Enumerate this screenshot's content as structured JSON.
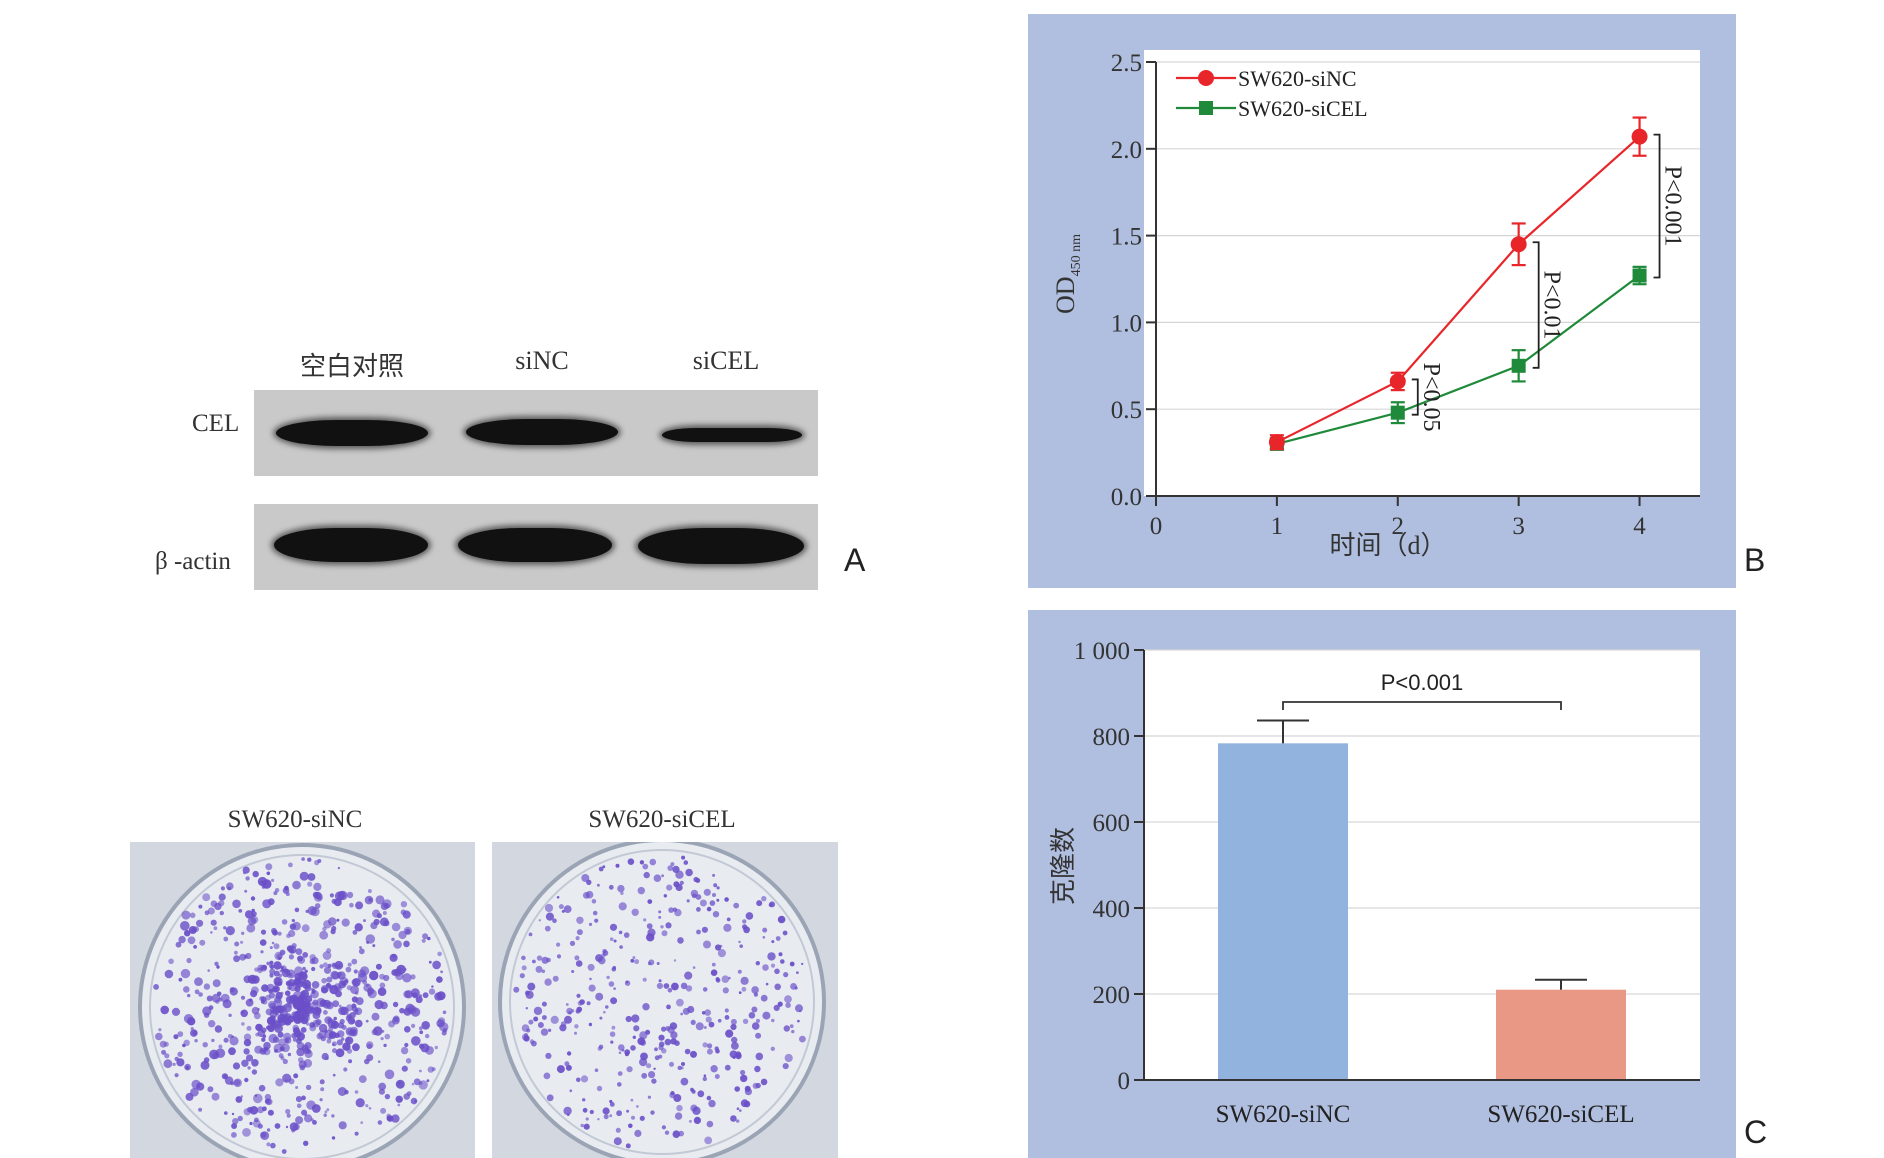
{
  "panel_a": {
    "lanes": [
      "空白对照",
      "siNC",
      "siCEL"
    ],
    "rows": [
      "CEL",
      "β -actin"
    ],
    "letter": "A"
  },
  "plates": {
    "left_title": "SW620-siNC",
    "right_title": "SW620-siCEL"
  },
  "chart_data": [
    {
      "type": "line",
      "letter": "B",
      "xlabel": "时间（d）",
      "ylabel_main": "OD",
      "ylabel_sub": "450 nm",
      "x": [
        1,
        2,
        3,
        4
      ],
      "xlim": [
        0,
        4.5
      ],
      "xticks": [
        "0",
        "1",
        "2",
        "3",
        "4"
      ],
      "ylim": [
        0,
        2.5
      ],
      "yticks": [
        "0.0",
        "0.5",
        "1.0",
        "1.5",
        "2.0",
        "2.5"
      ],
      "grid": true,
      "legend_position": "top-left",
      "series": [
        {
          "name": "SW620-siNC",
          "color": "#e8262a",
          "marker": "circle",
          "values": [
            0.31,
            0.66,
            1.45,
            2.07
          ],
          "errors": [
            0.04,
            0.05,
            0.12,
            0.11
          ]
        },
        {
          "name": "SW620-siCEL",
          "color": "#1f8a3a",
          "marker": "square",
          "values": [
            0.3,
            0.48,
            0.75,
            1.27
          ],
          "errors": [
            0.03,
            0.06,
            0.09,
            0.05
          ]
        }
      ],
      "annotations": [
        "P<0.05",
        "P<0.01",
        "P<0.001"
      ]
    },
    {
      "type": "bar",
      "letter": "C",
      "categories": [
        "SW620-siNC",
        "SW620-siCEL"
      ],
      "values": [
        783,
        210
      ],
      "errors": [
        53,
        23
      ],
      "colors": [
        "#92b3de",
        "#e89885"
      ],
      "ylabel": "克隆数",
      "ylim": [
        0,
        1000
      ],
      "yticks": [
        "0",
        "200",
        "400",
        "600",
        "800",
        "1 000"
      ],
      "grid": true,
      "annotation": "P<0.001"
    }
  ],
  "colors": {
    "panel_bg": "#b0bfe0",
    "plot_bg": "#ffffff",
    "grid": "#d6d6d6",
    "colony": "#6a4fc8"
  }
}
